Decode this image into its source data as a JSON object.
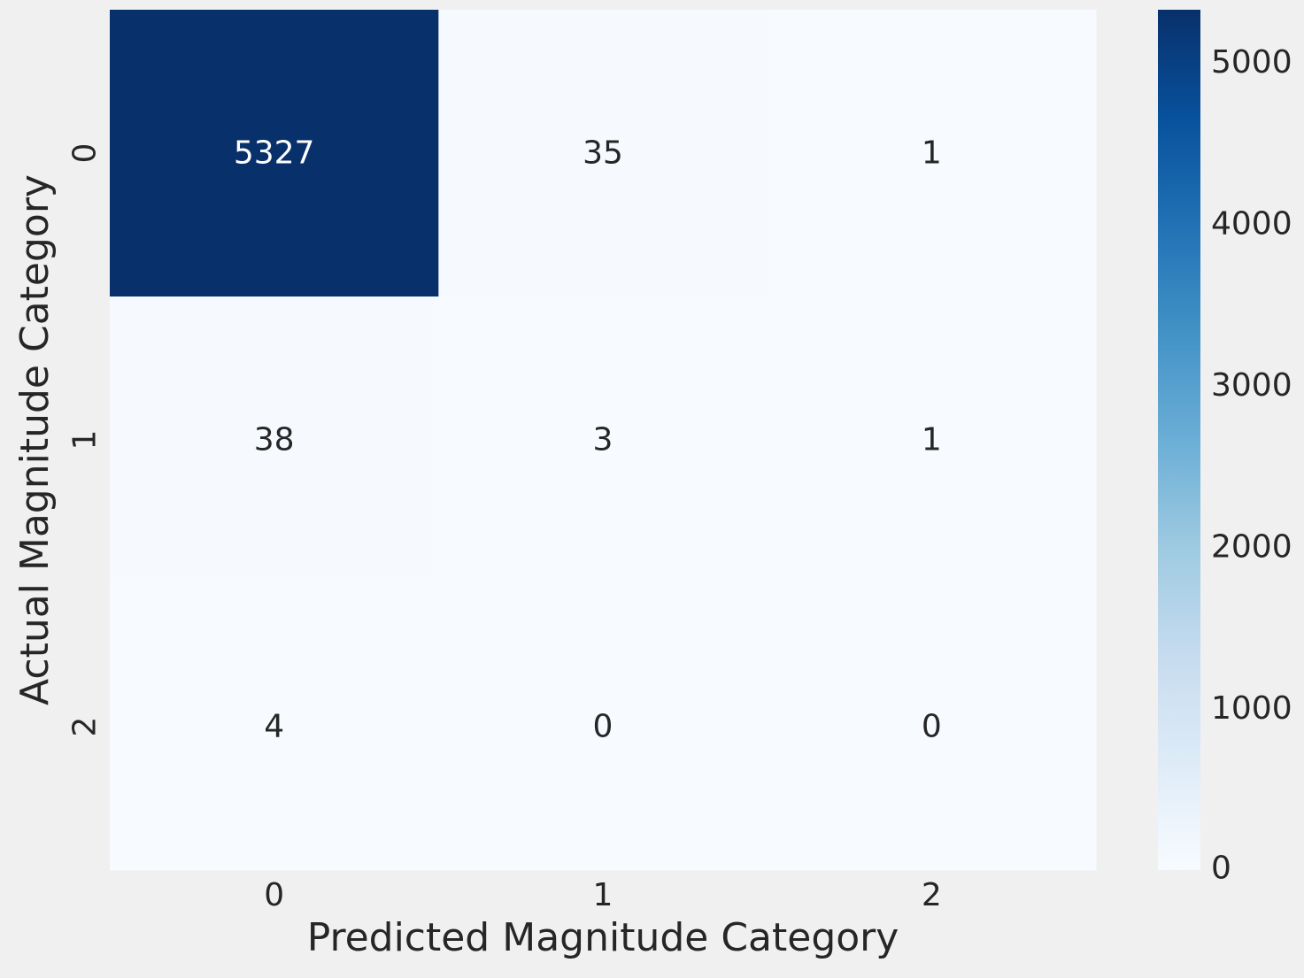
{
  "chart_data": {
    "type": "heatmap",
    "title": "",
    "xlabel": "Predicted Magnitude Category",
    "ylabel": "Actual Magnitude Category",
    "x_categories": [
      "0",
      "1",
      "2"
    ],
    "y_categories": [
      "0",
      "1",
      "2"
    ],
    "values": [
      [
        5327,
        35,
        1
      ],
      [
        38,
        3,
        1
      ],
      [
        4,
        0,
        0
      ]
    ],
    "colorbar": {
      "colormap": "Blues",
      "min": 0,
      "max": 5327,
      "ticks": [
        0,
        1000,
        2000,
        3000,
        4000,
        5000
      ]
    },
    "colors": {
      "background": "#f0f0f0",
      "low": "#f7fbff",
      "high": "#08306b",
      "text_dark": "#262626",
      "text_light": "#ffffff"
    }
  }
}
